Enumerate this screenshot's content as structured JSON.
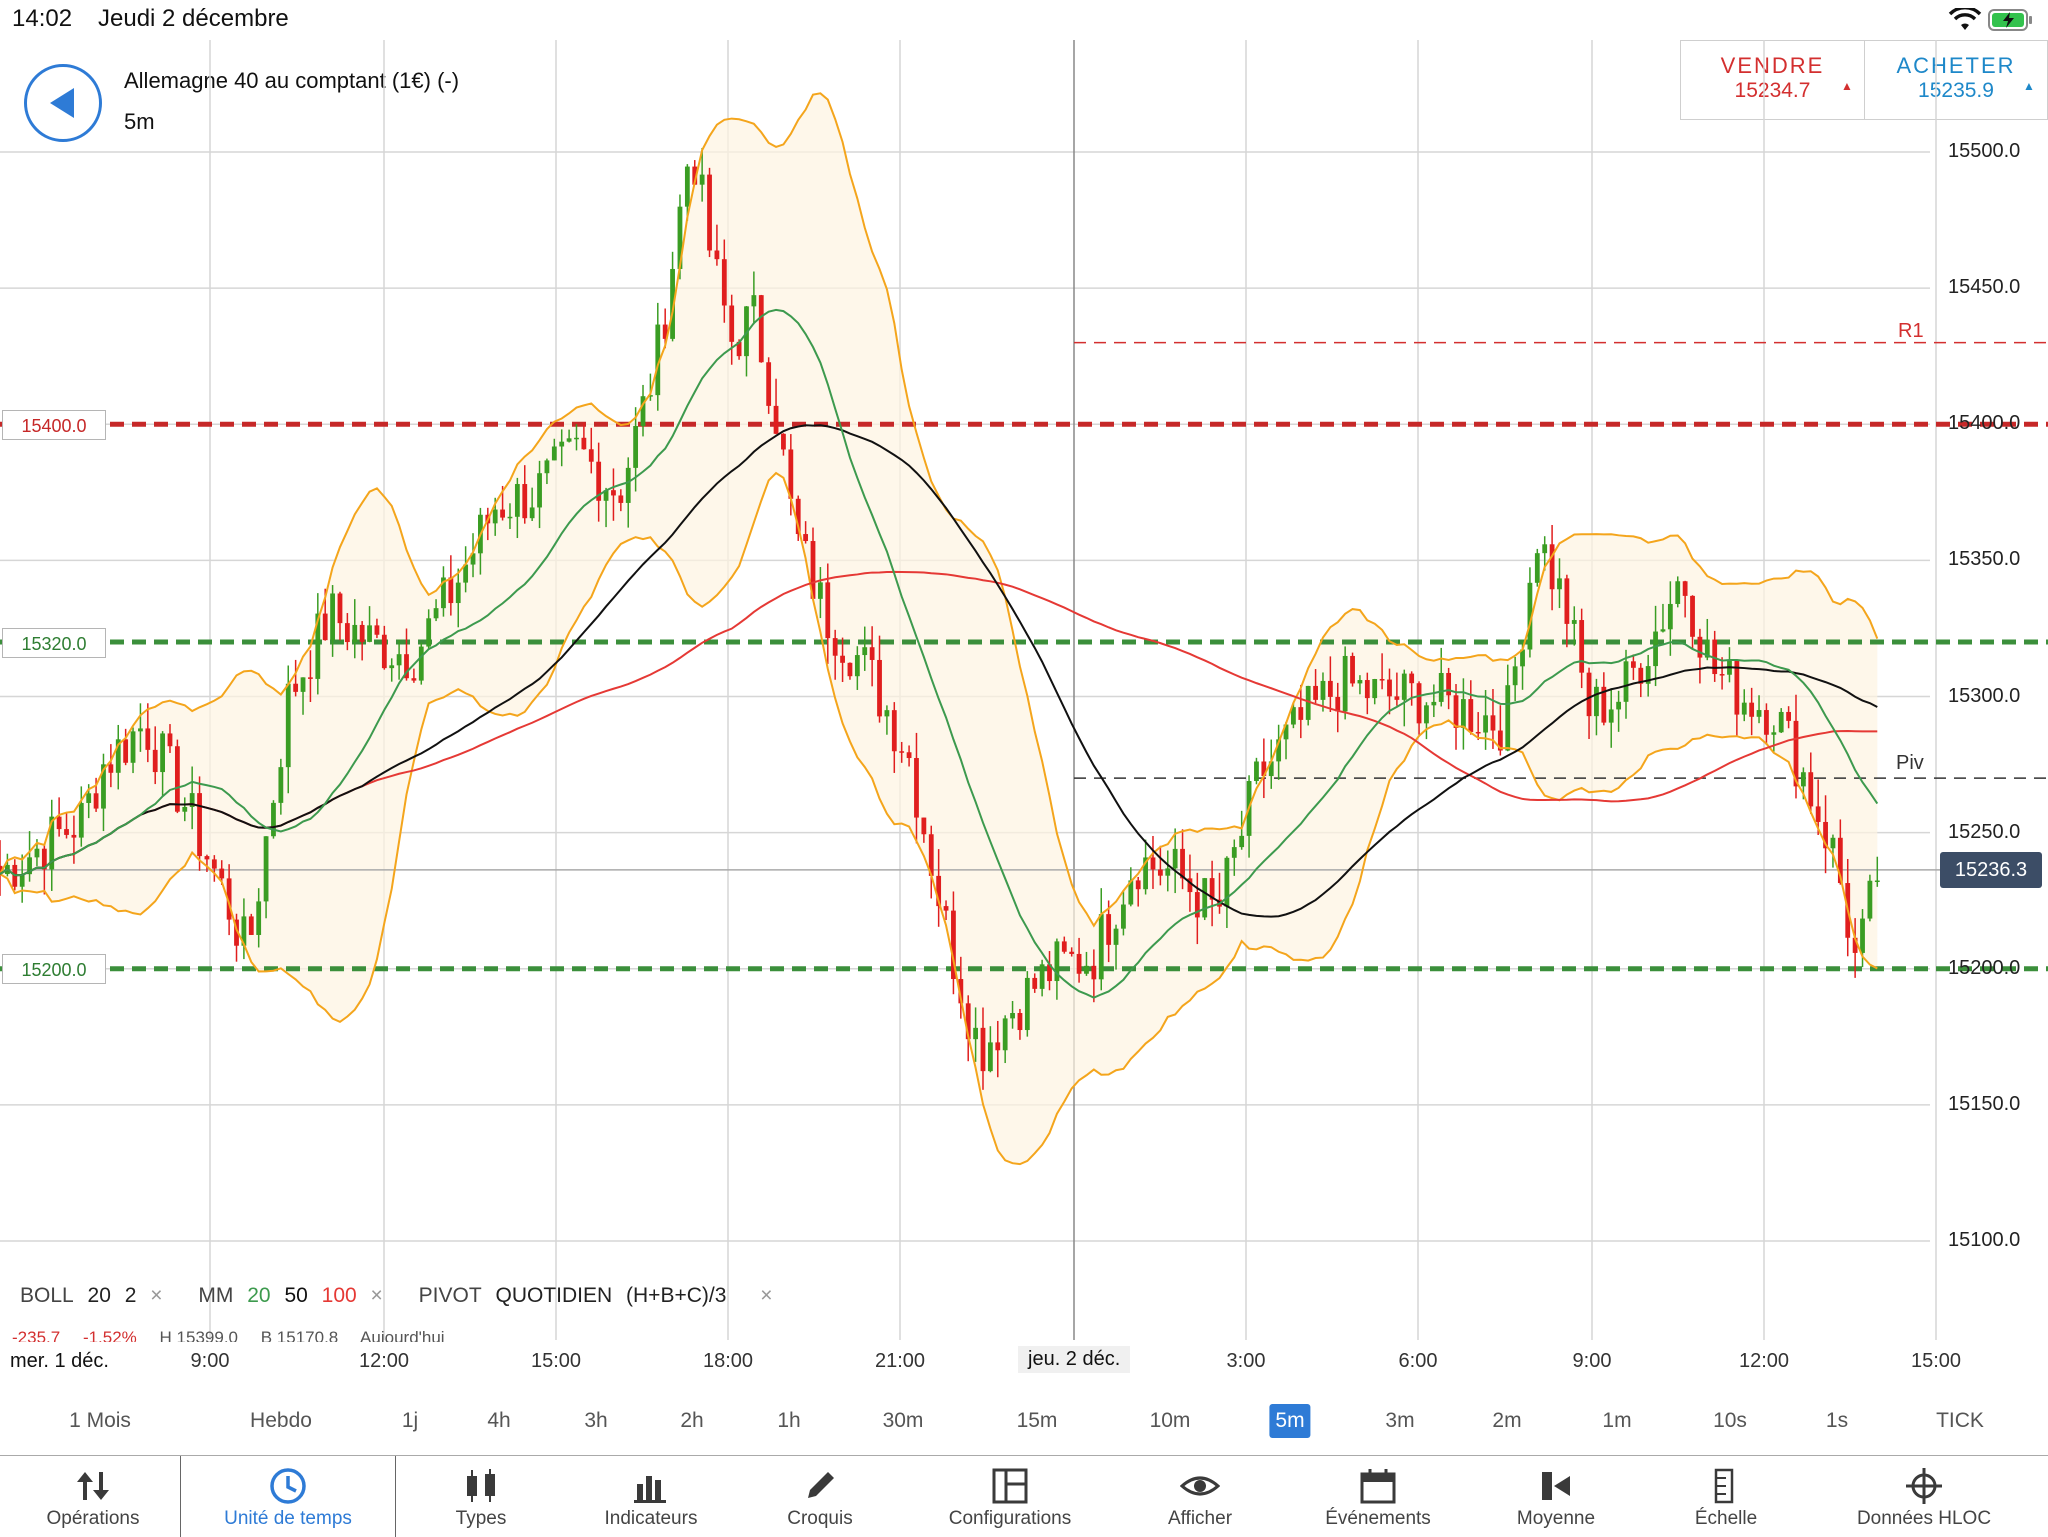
{
  "status_bar": {
    "time": "14:02",
    "date": "Jeudi 2 décembre"
  },
  "header": {
    "instrument": "Allemagne 40 au comptant (1€) (-)",
    "timeframe": "5m",
    "sell": {
      "label": "VENDRE",
      "price": "15234.7",
      "color": "#d32f2f"
    },
    "buy": {
      "label": "ACHETER",
      "price": "15235.9",
      "color": "#1e88c9"
    }
  },
  "chart": {
    "y_ticks": [
      "15500.0",
      "15450.0",
      "15400.0",
      "15350.0",
      "15300.0",
      "15250.0",
      "15200.0",
      "15150.0",
      "15100.0"
    ],
    "x_ticks": [
      "9:00",
      "12:00",
      "15:00",
      "18:00",
      "21:00",
      "3:00",
      "6:00",
      "9:00",
      "12:00",
      "15:00"
    ],
    "date_left": "mer. 1 déc.",
    "date_mid": "jeu. 2 déc.",
    "level_tags": [
      {
        "label": "15400.0",
        "color": "#c62828"
      },
      {
        "label": "15320.0",
        "color": "#2e7d32"
      },
      {
        "label": "15200.0",
        "color": "#2e7d32"
      }
    ],
    "r1_label": "R1",
    "piv_label": "Piv",
    "last_price": "15236.3",
    "legend": {
      "boll": "BOLL",
      "boll_period": "20",
      "boll_dev": "2",
      "ma": "MM",
      "ma1": "20",
      "ma2": "50",
      "ma3": "100",
      "pivot": "PIVOT",
      "pivot_type": "QUOTIDIEN",
      "pivot_formula": "(H+B+C)/3",
      "close_glyph": "×"
    },
    "stats": {
      "change": "-235.7",
      "change_pct": "-1.52%",
      "high": "H 15399.0",
      "low": "B 15170.8",
      "period": "Aujourd'hui"
    }
  },
  "chart_data": {
    "type": "candlestick",
    "ylim": [
      15080,
      15540
    ],
    "y_ticks": [
      15100,
      15150,
      15200,
      15250,
      15300,
      15350,
      15400,
      15450,
      15500
    ],
    "levels": {
      "resistance_15400": 15400,
      "support_15320": 15320,
      "support_15200": 15200,
      "R1": 15430,
      "Piv": 15270
    },
    "close_path": [
      [
        0,
        15235
      ],
      [
        0.04,
        15255
      ],
      [
        0.05,
        15275
      ],
      [
        0.07,
        15290
      ],
      [
        0.09,
        15260
      ],
      [
        0.11,
        15225
      ],
      [
        0.12,
        15205
      ],
      [
        0.14,
        15300
      ],
      [
        0.16,
        15330
      ],
      [
        0.18,
        15320
      ],
      [
        0.2,
        15315
      ],
      [
        0.22,
        15340
      ],
      [
        0.24,
        15370
      ],
      [
        0.26,
        15375
      ],
      [
        0.28,
        15390
      ],
      [
        0.3,
        15375
      ],
      [
        0.31,
        15400
      ],
      [
        0.32,
        15430
      ],
      [
        0.335,
        15505
      ],
      [
        0.345,
        15460
      ],
      [
        0.355,
        15430
      ],
      [
        0.365,
        15440
      ],
      [
        0.375,
        15410
      ],
      [
        0.385,
        15360
      ],
      [
        0.4,
        15330
      ],
      [
        0.42,
        15310
      ],
      [
        0.44,
        15280
      ],
      [
        0.46,
        15210
      ],
      [
        0.475,
        15170
      ],
      [
        0.49,
        15185
      ],
      [
        0.51,
        15200
      ],
      [
        0.53,
        15205
      ],
      [
        0.55,
        15240
      ],
      [
        0.57,
        15235
      ],
      [
        0.59,
        15220
      ],
      [
        0.61,
        15270
      ],
      [
        0.63,
        15290
      ],
      [
        0.65,
        15305
      ],
      [
        0.67,
        15300
      ],
      [
        0.69,
        15300
      ],
      [
        0.71,
        15295
      ],
      [
        0.73,
        15290
      ],
      [
        0.745,
        15360
      ],
      [
        0.76,
        15330
      ],
      [
        0.77,
        15295
      ],
      [
        0.785,
        15300
      ],
      [
        0.8,
        15320
      ],
      [
        0.815,
        15345
      ],
      [
        0.83,
        15310
      ],
      [
        0.845,
        15300
      ],
      [
        0.86,
        15295
      ],
      [
        0.875,
        15270
      ],
      [
        0.89,
        15240
      ],
      [
        0.9,
        15200
      ],
      [
        0.91,
        15235
      ]
    ],
    "series": [
      {
        "name": "MM 20",
        "color": "#3d9a4e"
      },
      {
        "name": "MM 50",
        "color": "#111111"
      },
      {
        "name": "MM 100",
        "color": "#e53935"
      },
      {
        "name": "BOLL 20 2",
        "color": "#f4a51c"
      }
    ]
  },
  "timeframes": [
    "1 Mois",
    "Hebdo",
    "1j",
    "4h",
    "3h",
    "2h",
    "1h",
    "30m",
    "15m",
    "10m",
    "5m",
    "3m",
    "2m",
    "1m",
    "10s",
    "1s",
    "TICK"
  ],
  "active_timeframe_index": 10,
  "toolbar": [
    {
      "label": "Opérations",
      "icon": "up-down-arrows-icon"
    },
    {
      "label": "Unité de temps",
      "icon": "clock-icon"
    },
    {
      "label": "Types",
      "icon": "candles-icon"
    },
    {
      "label": "Indicateurs",
      "icon": "bar-chart-icon"
    },
    {
      "label": "Croquis",
      "icon": "pencil-icon"
    },
    {
      "label": "Configurations",
      "icon": "layout-icon"
    },
    {
      "label": "Afficher",
      "icon": "eye-icon"
    },
    {
      "label": "Événements",
      "icon": "calendar-icon"
    },
    {
      "label": "Moyenne",
      "icon": "average-icon"
    },
    {
      "label": "Échelle",
      "icon": "scale-icon"
    },
    {
      "label": "Données HLOC",
      "icon": "crosshair-icon"
    }
  ],
  "active_tool_index": 1
}
